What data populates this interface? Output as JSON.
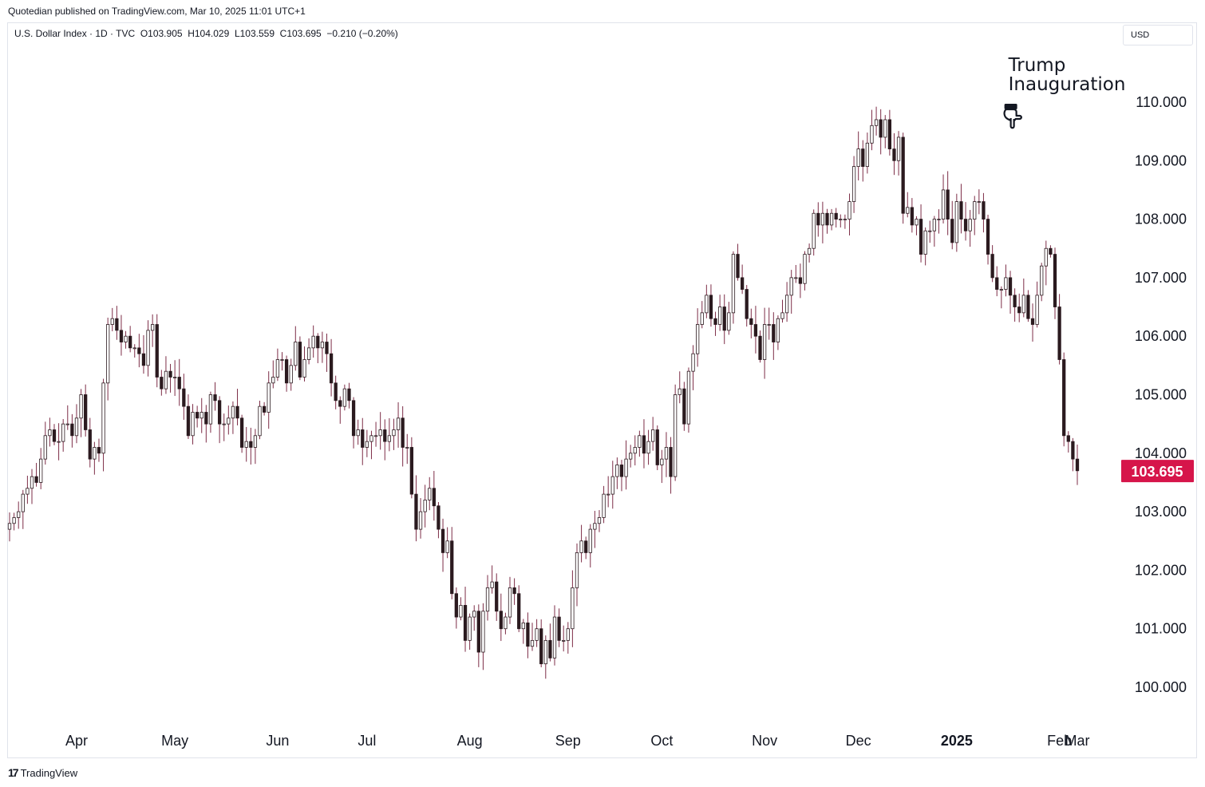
{
  "publisher_line": "Quotedian published on TradingView.com, Mar 10, 2025 11:01 UTC+1",
  "legend": {
    "symbol": "U.S. Dollar Index · 1D · TVC",
    "open": "O103.905",
    "high": "H104.029",
    "low": "L103.559",
    "close": "C103.695",
    "change": "−0.210 (−0.20%)"
  },
  "currency": "USD",
  "footer": "TradingView",
  "colors": {
    "up": "#ffffff",
    "down": "#2b1a1f",
    "wick": "#7d2d47",
    "price_badge": "#d6154a",
    "grid": "#e0e3eb"
  },
  "annotation": {
    "line1": "Trump",
    "line2": "Inauguration",
    "icon": "pointing-hand-icon"
  },
  "chart_data": {
    "type": "candlestick",
    "symbol": "U.S. Dollar Index",
    "interval": "1D",
    "ylim": [
      99.4,
      111.2
    ],
    "y_ticks": [
      "100.000",
      "101.000",
      "102.000",
      "103.000",
      "104.000",
      "105.000",
      "106.000",
      "107.000",
      "108.000",
      "109.000",
      "110.000"
    ],
    "x_ticks": [
      {
        "label": "Apr",
        "date": "2024-04-01",
        "bold": false
      },
      {
        "label": "May",
        "date": "2024-05-01",
        "bold": false
      },
      {
        "label": "Jun",
        "date": "2024-06-03",
        "bold": false
      },
      {
        "label": "Jul",
        "date": "2024-07-01",
        "bold": false
      },
      {
        "label": "Aug",
        "date": "2024-08-01",
        "bold": false
      },
      {
        "label": "Sep",
        "date": "2024-09-02",
        "bold": false
      },
      {
        "label": "Oct",
        "date": "2024-10-01",
        "bold": false
      },
      {
        "label": "Nov",
        "date": "2024-11-01",
        "bold": false
      },
      {
        "label": "Dec",
        "date": "2024-12-02",
        "bold": false
      },
      {
        "label": "2025",
        "date": "2025-01-01",
        "bold": true
      },
      {
        "label": "Feb",
        "date": "2025-02-03",
        "bold": false
      },
      {
        "label": "Mar",
        "date": "2025-03-03",
        "bold": false
      }
    ],
    "last_price": "103.695",
    "annotation_date": "2025-01-20",
    "start_date": "2024-03-11",
    "closes": [
      102.8,
      102.9,
      103.0,
      103.3,
      103.4,
      103.6,
      103.5,
      103.9,
      104.3,
      104.4,
      104.2,
      104.2,
      104.5,
      104.5,
      104.3,
      104.6,
      105.0,
      104.4,
      103.9,
      104.1,
      104.0,
      105.2,
      106.2,
      106.3,
      106.1,
      105.9,
      106.0,
      105.8,
      105.8,
      105.7,
      105.5,
      106.1,
      106.2,
      105.3,
      105.1,
      105.4,
      105.3,
      105.3,
      105.1,
      104.8,
      104.3,
      104.7,
      104.6,
      104.7,
      104.5,
      105.0,
      104.9,
      104.5,
      104.5,
      104.6,
      104.8,
      104.6,
      104.1,
      104.2,
      104.1,
      104.3,
      104.8,
      104.7,
      105.2,
      105.3,
      105.6,
      105.6,
      105.2,
      105.5,
      105.9,
      105.3,
      105.6,
      105.8,
      106.0,
      105.8,
      105.9,
      105.7,
      105.2,
      104.9,
      104.8,
      105.1,
      104.9,
      104.3,
      104.4,
      104.1,
      104.2,
      104.3,
      104.3,
      104.4,
      104.2,
      104.3,
      104.4,
      104.6,
      104.1,
      104.1,
      103.3,
      102.7,
      103.0,
      103.2,
      103.4,
      103.1,
      102.7,
      102.3,
      102.5,
      101.6,
      101.2,
      101.4,
      100.8,
      101.2,
      101.3,
      100.6,
      101.3,
      101.7,
      101.8,
      101.3,
      101.0,
      101.2,
      101.7,
      101.6,
      101.0,
      101.1,
      100.7,
      100.8,
      101.0,
      100.4,
      100.8,
      100.5,
      101.2,
      100.8,
      100.8,
      101.0,
      101.7,
      102.3,
      102.5,
      102.3,
      102.7,
      102.8,
      102.9,
      103.3,
      103.3,
      103.6,
      103.8,
      103.6,
      103.9,
      104.0,
      104.1,
      104.3,
      104.0,
      104.2,
      104.4,
      103.8,
      103.9,
      104.1,
      103.6,
      105.0,
      105.1,
      104.5,
      105.4,
      105.7,
      106.2,
      106.4,
      106.7,
      106.3,
      106.2,
      106.5,
      106.1,
      106.4,
      107.4,
      107.0,
      106.8,
      106.3,
      106.2,
      106.0,
      105.6,
      106.2,
      106.2,
      105.9,
      106.3,
      106.4,
      106.7,
      107.0,
      107.0,
      106.9,
      107.4,
      107.5,
      108.1,
      107.9,
      108.1,
      107.9,
      108.1,
      108.0,
      108.0,
      108.0,
      108.3,
      108.9,
      109.2,
      108.9,
      109.3,
      109.6,
      109.7,
      109.4,
      109.7,
      109.2,
      109.0,
      109.4,
      108.1,
      108.2,
      107.9,
      108.0,
      107.4,
      107.8,
      107.8,
      108.0,
      108.0,
      108.5,
      108.0,
      107.6,
      108.3,
      108.0,
      107.8,
      108.0,
      108.3,
      108.3,
      108.0,
      107.4,
      107.0,
      106.8,
      106.8,
      107.0,
      106.7,
      106.5,
      106.4,
      106.7,
      106.3,
      106.2,
      106.7,
      107.2,
      107.5,
      107.4,
      106.5,
      105.6,
      104.3,
      104.2,
      103.9,
      103.7
    ]
  }
}
